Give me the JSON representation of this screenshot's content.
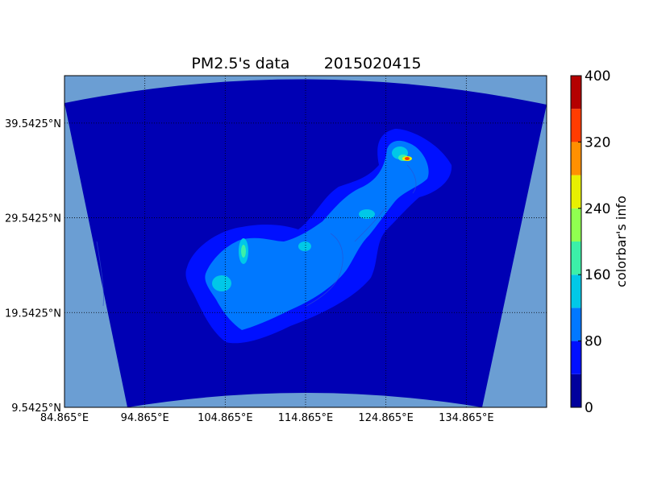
{
  "title": "PM2.5's data       2015020415",
  "map": {
    "lon_ticks": [
      "84.865°E",
      "94.865°E",
      "104.865°E",
      "114.865°E",
      "124.865°E",
      "134.865°E"
    ],
    "lat_ticks": [
      "9.5425°N",
      "19.5425°N",
      "29.5425°N",
      "39.5425°N"
    ],
    "lon_range": [
      84.865,
      144.865
    ],
    "lat_range": [
      9.5425,
      44.5425
    ],
    "outside_domain_color": "#6b9ed3",
    "domain_base_color": "#0000b4"
  },
  "colorbar": {
    "label": "colorbar's info",
    "ticks": [
      "0",
      "80",
      "160",
      "240",
      "320",
      "400"
    ],
    "range": [
      0,
      400
    ],
    "levels": [
      0,
      40,
      80,
      120,
      160,
      200,
      240,
      280,
      320,
      360,
      400
    ],
    "colors": [
      "#00009c",
      "#0010ff",
      "#0078ff",
      "#00c8e8",
      "#3cf0a8",
      "#90ff50",
      "#e8f000",
      "#ff9000",
      "#ff3c00",
      "#b40000"
    ]
  }
}
